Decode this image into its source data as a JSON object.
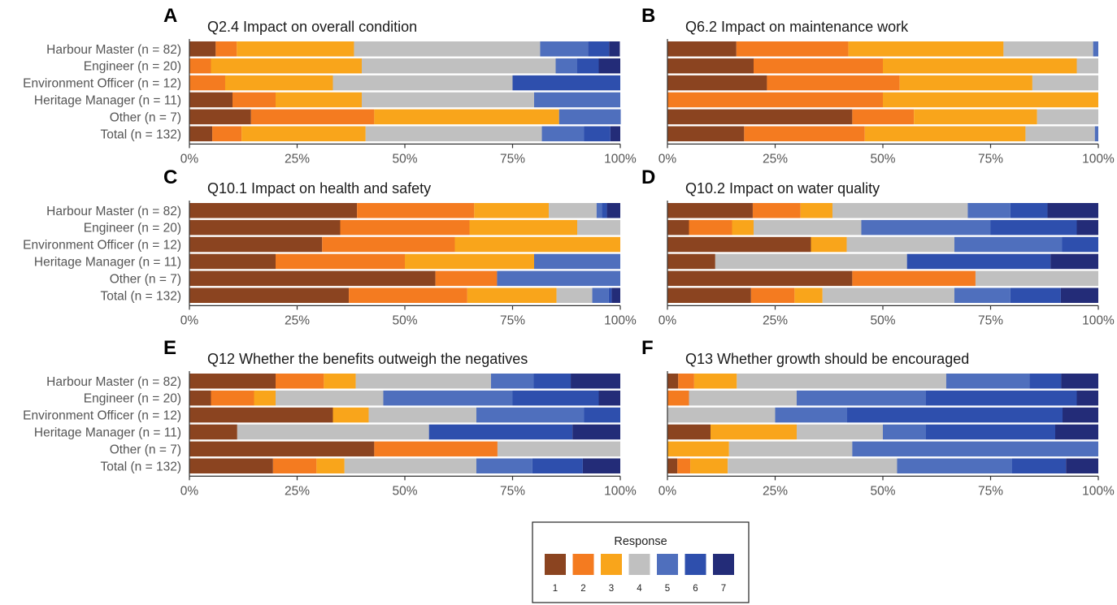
{
  "colors": [
    "#8b4420",
    "#f47b20",
    "#f9a51b",
    "#c0c0c0",
    "#4f6fbd",
    "#2e4fad",
    "#232c78"
  ],
  "categories": [
    "Harbour Master (n = 82)",
    "Engineer (n = 20)",
    "Environment Officer (n = 12)",
    "Heritage Manager (n = 11)",
    "Other (n = 7)",
    "Total (n = 132)"
  ],
  "x_ticks": [
    "0%",
    "25%",
    "50%",
    "75%",
    "100%"
  ],
  "legend": {
    "title": "Response",
    "labels": [
      "1",
      "2",
      "3",
      "4",
      "5",
      "6",
      "7"
    ]
  },
  "chart_data": [
    {
      "type": "bar",
      "orientation": "horizontal",
      "stacked": true,
      "percent": true,
      "letter": "A",
      "title": "Q2.4 Impact on overall condition",
      "categories": [
        "Harbour Master (n = 82)",
        "Engineer (n = 20)",
        "Environment Officer (n = 12)",
        "Heritage Manager (n = 11)",
        "Other (n = 7)",
        "Total (n = 132)"
      ],
      "series": [
        {
          "name": "1",
          "values": [
            6.1,
            0,
            0,
            10,
            14.3,
            5.3
          ]
        },
        {
          "name": "2",
          "values": [
            4.9,
            5,
            8.3,
            10,
            28.6,
            6.8
          ]
        },
        {
          "name": "3",
          "values": [
            27.2,
            35,
            25,
            20,
            42.9,
            28.8
          ]
        },
        {
          "name": "4",
          "values": [
            43.2,
            45,
            41.7,
            40,
            0,
            40.9
          ]
        },
        {
          "name": "5",
          "values": [
            11.1,
            5,
            0,
            20,
            14.3,
            9.8
          ]
        },
        {
          "name": "6",
          "values": [
            4.9,
            5,
            25,
            0,
            0,
            6.1
          ]
        },
        {
          "name": "7",
          "values": [
            2.5,
            5,
            0,
            0,
            0,
            2.3
          ]
        }
      ],
      "xlim": [
        0,
        100
      ]
    },
    {
      "type": "bar",
      "orientation": "horizontal",
      "stacked": true,
      "percent": true,
      "letter": "B",
      "title": "Q6.2 Impact on maintenance work",
      "categories": [
        "Harbour Master (n = 82)",
        "Engineer (n = 20)",
        "Environment Officer (n = 12)",
        "Heritage Manager (n = 11)",
        "Other (n = 7)",
        "Total (n = 132)"
      ],
      "series": [
        {
          "name": "1",
          "values": [
            16,
            20,
            23.1,
            0,
            42.9,
            17.8
          ]
        },
        {
          "name": "2",
          "values": [
            26,
            30,
            30.8,
            50,
            14.3,
            28
          ]
        },
        {
          "name": "3",
          "values": [
            36,
            45,
            30.8,
            50,
            28.6,
            37.3
          ]
        },
        {
          "name": "4",
          "values": [
            20.8,
            5,
            15.3,
            0,
            14.2,
            16.1
          ]
        },
        {
          "name": "5",
          "values": [
            1.2,
            0,
            0,
            0,
            0,
            0.8
          ]
        },
        {
          "name": "6",
          "values": [
            0,
            0,
            0,
            0,
            0,
            0
          ]
        },
        {
          "name": "7",
          "values": [
            0,
            0,
            0,
            0,
            0,
            0
          ]
        }
      ],
      "xlim": [
        0,
        100
      ]
    },
    {
      "type": "bar",
      "orientation": "horizontal",
      "stacked": true,
      "percent": true,
      "letter": "C",
      "title": "Q10.1 Impact on health and safety",
      "categories": [
        "Harbour Master (n = 82)",
        "Engineer (n = 20)",
        "Environment Officer (n = 12)",
        "Heritage Manager (n = 11)",
        "Other (n = 7)",
        "Total (n = 132)"
      ],
      "series": [
        {
          "name": "1",
          "values": [
            38.9,
            35,
            30.8,
            20,
            57.1,
            37
          ]
        },
        {
          "name": "2",
          "values": [
            27.2,
            30,
            30.8,
            30,
            14.3,
            27.5
          ]
        },
        {
          "name": "3",
          "values": [
            17.3,
            25,
            38.4,
            30,
            0,
            20.7
          ]
        },
        {
          "name": "4",
          "values": [
            11.1,
            10,
            0,
            0,
            0,
            8.3
          ]
        },
        {
          "name": "5",
          "values": [
            1.2,
            0,
            0,
            20,
            28.6,
            3.8
          ]
        },
        {
          "name": "6",
          "values": [
            1.2,
            0,
            0,
            0,
            0,
            0.7
          ]
        },
        {
          "name": "7",
          "values": [
            3.1,
            0,
            0,
            0,
            0,
            2
          ]
        }
      ],
      "xlim": [
        0,
        100
      ]
    },
    {
      "type": "bar",
      "orientation": "horizontal",
      "stacked": true,
      "percent": true,
      "letter": "D",
      "title": "Q10.2 Impact on water quality",
      "categories": [
        "Harbour Master (n = 82)",
        "Engineer (n = 20)",
        "Environment Officer (n = 12)",
        "Heritage Manager (n = 11)",
        "Other (n = 7)",
        "Total (n = 132)"
      ],
      "series": [
        {
          "name": "1",
          "values": [
            19.8,
            5,
            33.3,
            11.1,
            42.9,
            19.4
          ]
        },
        {
          "name": "2",
          "values": [
            11.1,
            10,
            0,
            0,
            28.6,
            10.1
          ]
        },
        {
          "name": "3",
          "values": [
            7.4,
            5,
            8.3,
            0,
            0,
            6.5
          ]
        },
        {
          "name": "4",
          "values": [
            31.4,
            25,
            25,
            44.5,
            28.5,
            30.6
          ]
        },
        {
          "name": "5",
          "values": [
            9.9,
            30,
            25,
            0,
            0,
            13
          ]
        },
        {
          "name": "6",
          "values": [
            8.6,
            20,
            8.4,
            33.3,
            0,
            11.7
          ]
        },
        {
          "name": "7",
          "values": [
            11.8,
            5,
            0,
            11.1,
            0,
            8.7
          ]
        }
      ],
      "xlim": [
        0,
        100
      ]
    },
    {
      "type": "bar",
      "orientation": "horizontal",
      "stacked": true,
      "percent": true,
      "letter": "E",
      "title": "Q12 Whether the benefits outweigh the negatives",
      "categories": [
        "Harbour Master (n = 82)",
        "Engineer (n = 20)",
        "Environment Officer (n = 12)",
        "Heritage Manager (n = 11)",
        "Other (n = 7)",
        "Total (n = 132)"
      ],
      "series": [
        {
          "name": "1",
          "values": [
            20,
            5,
            33.3,
            11.1,
            42.9,
            19.4
          ]
        },
        {
          "name": "2",
          "values": [
            11.2,
            10,
            0,
            0,
            28.6,
            10.1
          ]
        },
        {
          "name": "3",
          "values": [
            7.4,
            5,
            8.3,
            0,
            0,
            6.5
          ]
        },
        {
          "name": "4",
          "values": [
            31.4,
            25,
            25,
            44.5,
            28.5,
            30.6
          ]
        },
        {
          "name": "5",
          "values": [
            9.9,
            30,
            25,
            0,
            0,
            13
          ]
        },
        {
          "name": "6",
          "values": [
            8.6,
            20,
            8.4,
            33.3,
            0,
            11.7
          ]
        },
        {
          "name": "7",
          "values": [
            11.5,
            5,
            0,
            11.1,
            0,
            8.7
          ]
        }
      ],
      "xlim": [
        0,
        100
      ]
    },
    {
      "type": "bar",
      "orientation": "horizontal",
      "stacked": true,
      "percent": true,
      "letter": "F",
      "title": "Q13 Whether growth should be encouraged",
      "categories": [
        "Harbour Master (n = 82)",
        "Engineer (n = 20)",
        "Environment Officer (n = 12)",
        "Heritage Manager (n = 11)",
        "Other (n = 7)",
        "Total (n = 132)"
      ],
      "series": [
        {
          "name": "1",
          "values": [
            2.5,
            0,
            0,
            10,
            0,
            2.3
          ]
        },
        {
          "name": "2",
          "values": [
            3.7,
            5,
            0,
            0,
            0,
            3
          ]
        },
        {
          "name": "3",
          "values": [
            9.9,
            0,
            0,
            20,
            14.3,
            8.7
          ]
        },
        {
          "name": "4",
          "values": [
            48.6,
            25,
            25,
            20,
            28.6,
            39.3
          ]
        },
        {
          "name": "5",
          "values": [
            19.3,
            30,
            16.7,
            10,
            57.1,
            26.7
          ]
        },
        {
          "name": "6",
          "values": [
            7.4,
            35,
            50,
            30,
            0,
            12.5
          ]
        },
        {
          "name": "7",
          "values": [
            8.6,
            5,
            8.3,
            10,
            0,
            7.5
          ]
        }
      ],
      "xlim": [
        0,
        100
      ]
    }
  ]
}
